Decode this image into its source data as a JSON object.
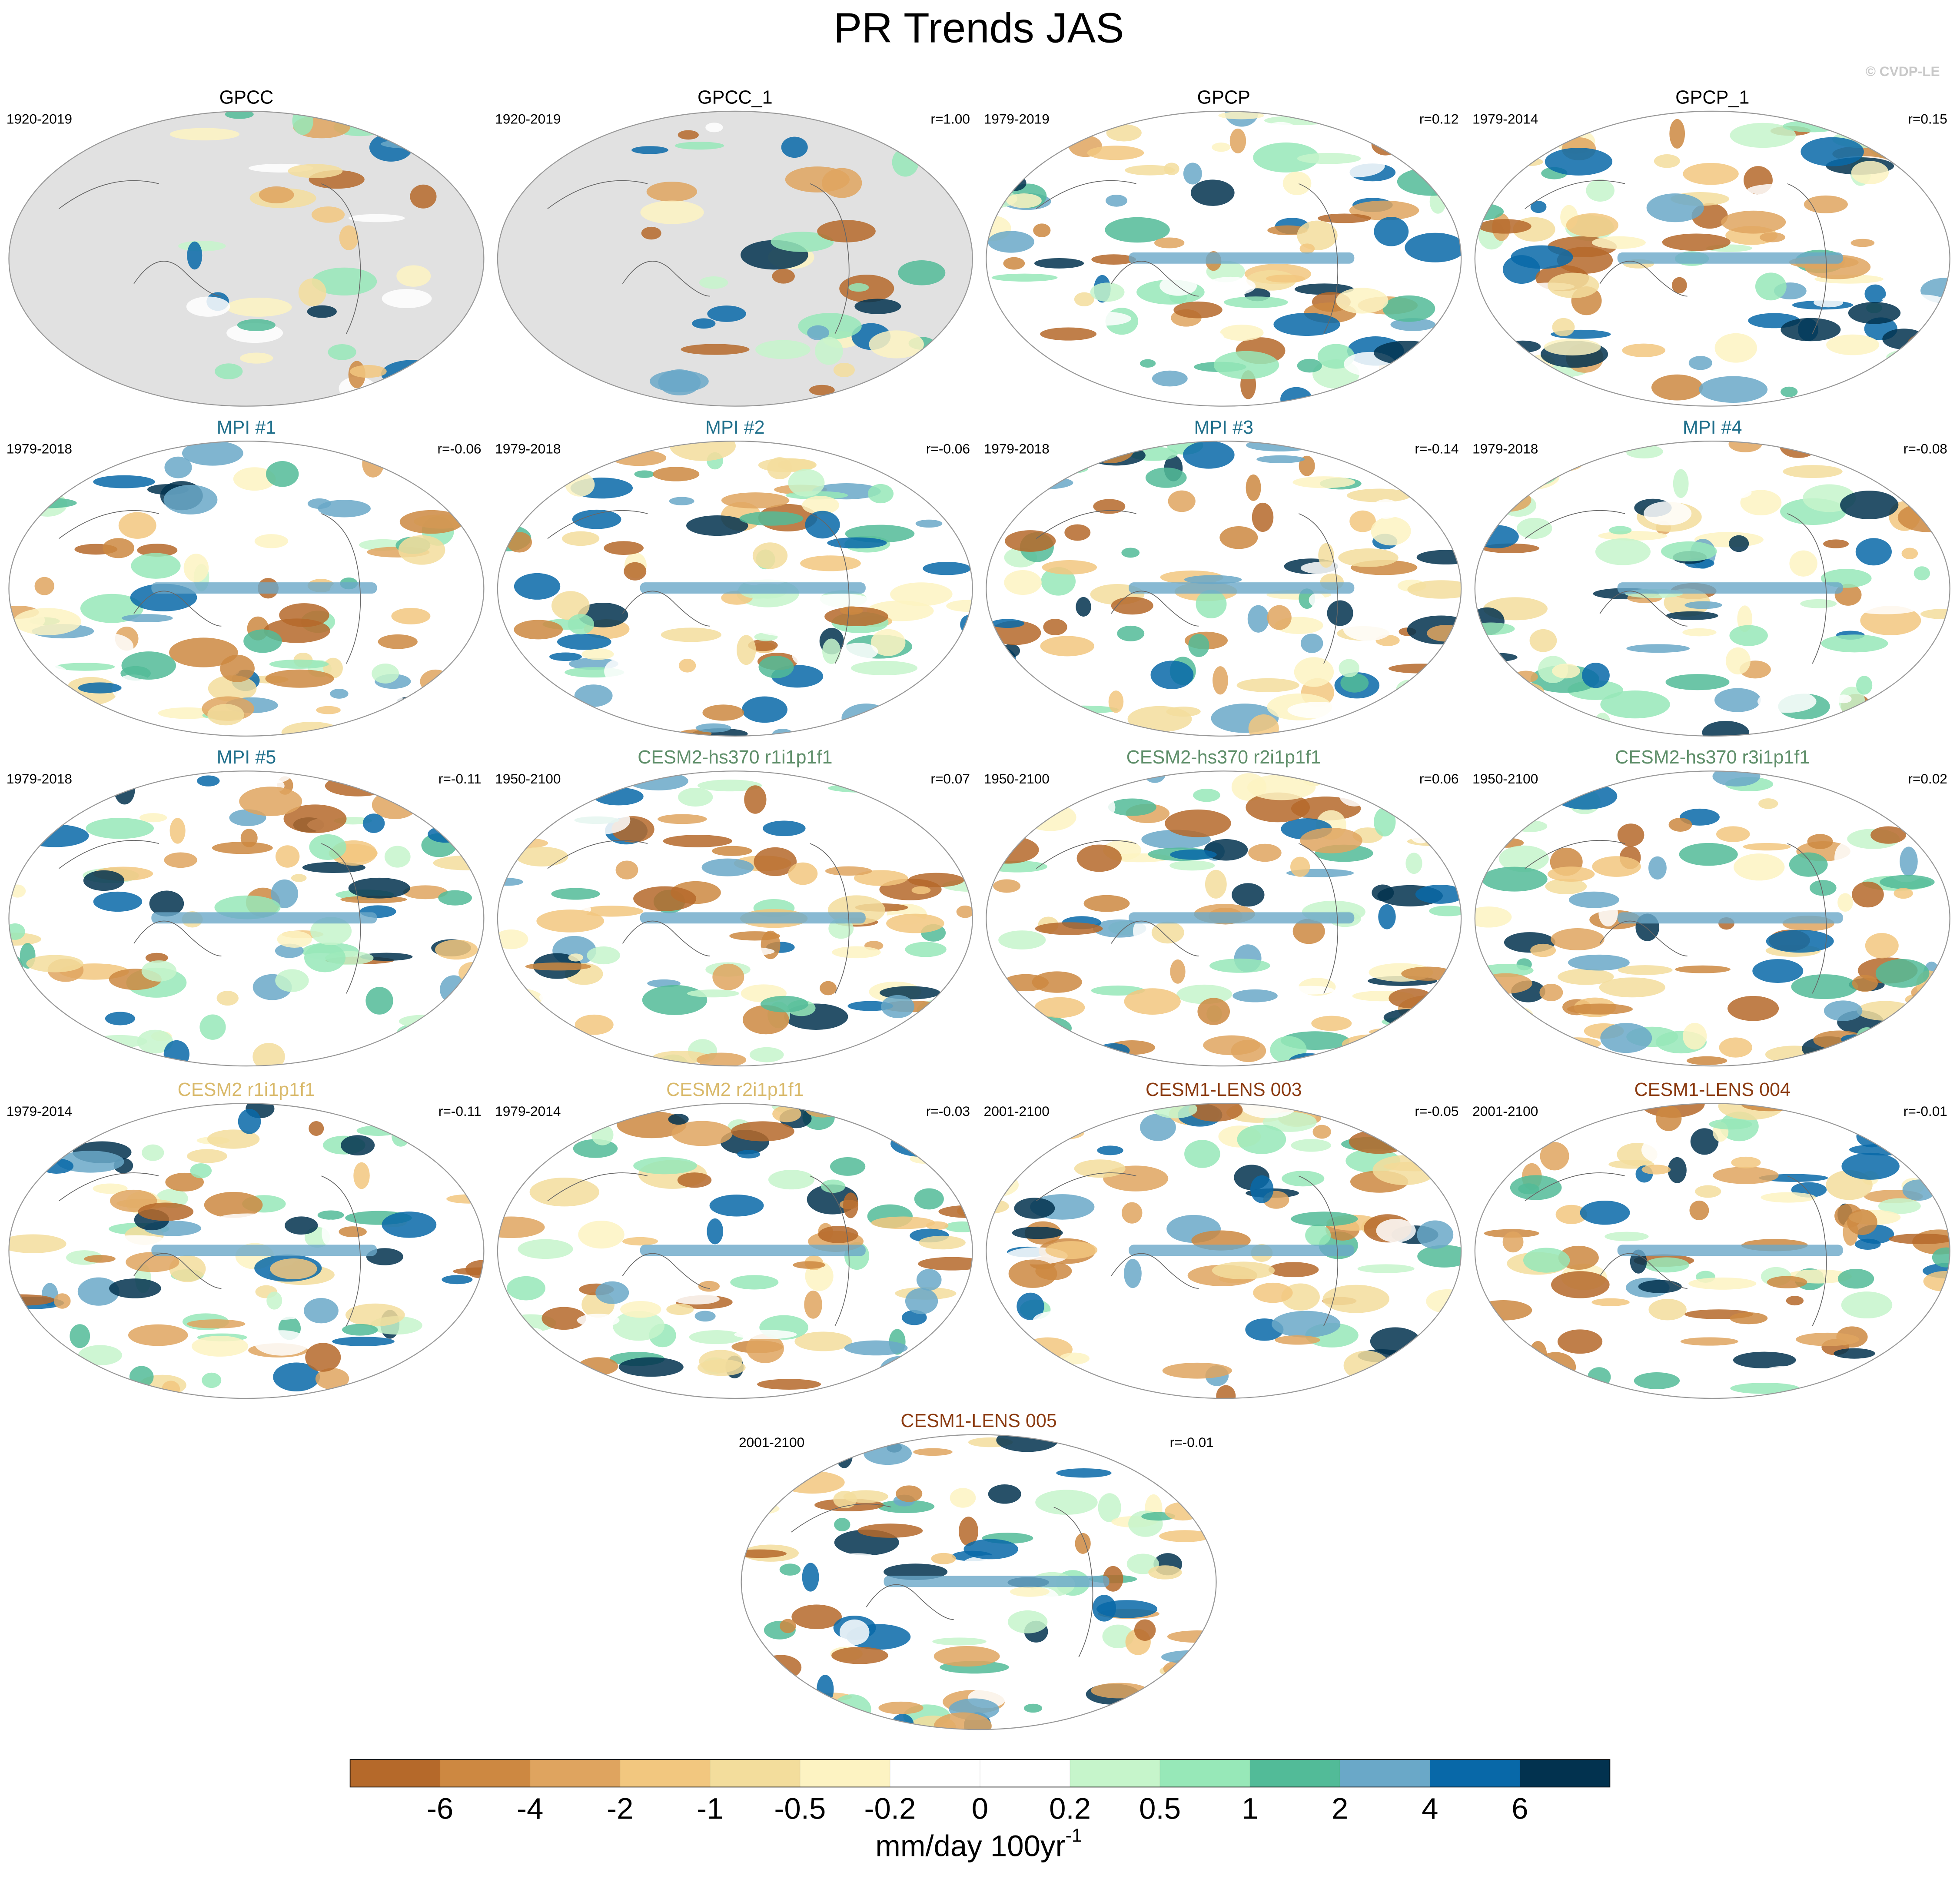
{
  "title": "PR Trends JAS",
  "watermark": "© CVDP-LE",
  "panels": [
    {
      "title": "GPCC",
      "period": "1920-2019",
      "r": null,
      "title_color": "#000000",
      "ocean_masked": true
    },
    {
      "title": "GPCC_1",
      "period": "1920-2019",
      "r": "r=1.00",
      "title_color": "#000000",
      "ocean_masked": true
    },
    {
      "title": "GPCP",
      "period": "1979-2019",
      "r": "r=0.12",
      "title_color": "#000000",
      "ocean_masked": false
    },
    {
      "title": "GPCP_1",
      "period": "1979-2014",
      "r": "r=0.15",
      "title_color": "#000000",
      "ocean_masked": false
    },
    {
      "title": "MPI #1",
      "period": "1979-2018",
      "r": "r=-0.06",
      "title_color": "#1f6f8b",
      "ocean_masked": false
    },
    {
      "title": "MPI #2",
      "period": "1979-2018",
      "r": "r=-0.06",
      "title_color": "#1f6f8b",
      "ocean_masked": false
    },
    {
      "title": "MPI #3",
      "period": "1979-2018",
      "r": "r=-0.14",
      "title_color": "#1f6f8b",
      "ocean_masked": false
    },
    {
      "title": "MPI #4",
      "period": "1979-2018",
      "r": "r=-0.08",
      "title_color": "#1f6f8b",
      "ocean_masked": false
    },
    {
      "title": "MPI #5",
      "period": "1979-2018",
      "r": "r=-0.11",
      "title_color": "#1f6f8b",
      "ocean_masked": false
    },
    {
      "title": "CESM2-hs370 r1i1p1f1",
      "period": "1950-2100",
      "r": "r=0.07",
      "title_color": "#5f8f6a",
      "ocean_masked": false
    },
    {
      "title": "CESM2-hs370 r2i1p1f1",
      "period": "1950-2100",
      "r": "r=0.06",
      "title_color": "#5f8f6a",
      "ocean_masked": false
    },
    {
      "title": "CESM2-hs370 r3i1p1f1",
      "period": "1950-2100",
      "r": "r=0.02",
      "title_color": "#5f8f6a",
      "ocean_masked": false
    },
    {
      "title": "CESM2 r1i1p1f1",
      "period": "1979-2014",
      "r": "r=-0.11",
      "title_color": "#d9b96a",
      "ocean_masked": false
    },
    {
      "title": "CESM2 r2i1p1f1",
      "period": "1979-2014",
      "r": "r=-0.03",
      "title_color": "#d9b96a",
      "ocean_masked": false
    },
    {
      "title": "CESM1-LENS 003",
      "period": "2001-2100",
      "r": "r=-0.05",
      "title_color": "#8b3a10",
      "ocean_masked": false
    },
    {
      "title": "CESM1-LENS 004",
      "period": "2001-2100",
      "r": "r=-0.01",
      "title_color": "#8b3a10",
      "ocean_masked": false
    },
    {
      "title": "CESM1-LENS 005",
      "period": "2001-2100",
      "r": "r=-0.01",
      "title_color": "#8b3a10",
      "ocean_masked": false
    }
  ],
  "colorbar": {
    "colors": [
      "#b5692a",
      "#cd8841",
      "#dfa45f",
      "#f2c77f",
      "#f3dd9c",
      "#fdf3c2",
      "#ffffff",
      "#ffffff",
      "#c6f5cb",
      "#97e8b8",
      "#52bb98",
      "#6aa8c8",
      "#0868a8",
      "#02324f"
    ],
    "ticks": [
      -6,
      -4,
      -2,
      -1,
      -0.5,
      -0.2,
      0,
      0.2,
      0.5,
      1,
      2,
      4,
      6
    ],
    "unit": "mm/day 100yr",
    "unit_superscript": "-1"
  }
}
